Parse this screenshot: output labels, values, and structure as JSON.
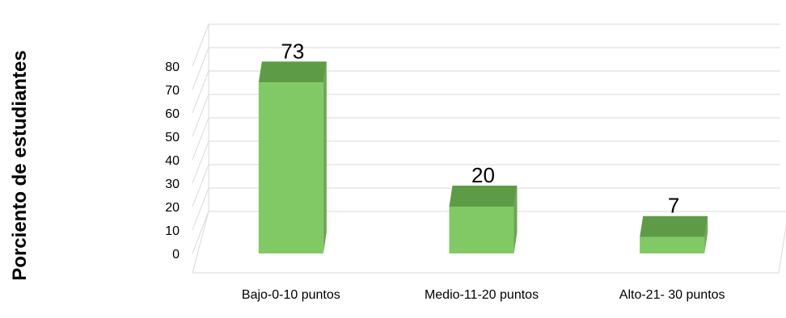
{
  "chart_data": {
    "type": "bar",
    "title": "",
    "xlabel": "",
    "ylabel": "Porciento de estudiantes",
    "ylim": [
      0,
      80
    ],
    "yticks": [
      0,
      10,
      20,
      30,
      40,
      50,
      60,
      70,
      80
    ],
    "grid": true,
    "categories": [
      "Bajo-0-10 puntos",
      "Medio-11-20 puntos",
      "Alto-21- 30 puntos"
    ],
    "values": [
      73,
      20,
      7
    ],
    "data_labels": [
      "73",
      "20",
      "7"
    ],
    "colors": {
      "bar_front": "#80c964",
      "bar_top": "#5e9b46",
      "bar_side": "#6aa852",
      "grid": "#d9d9d9"
    }
  }
}
